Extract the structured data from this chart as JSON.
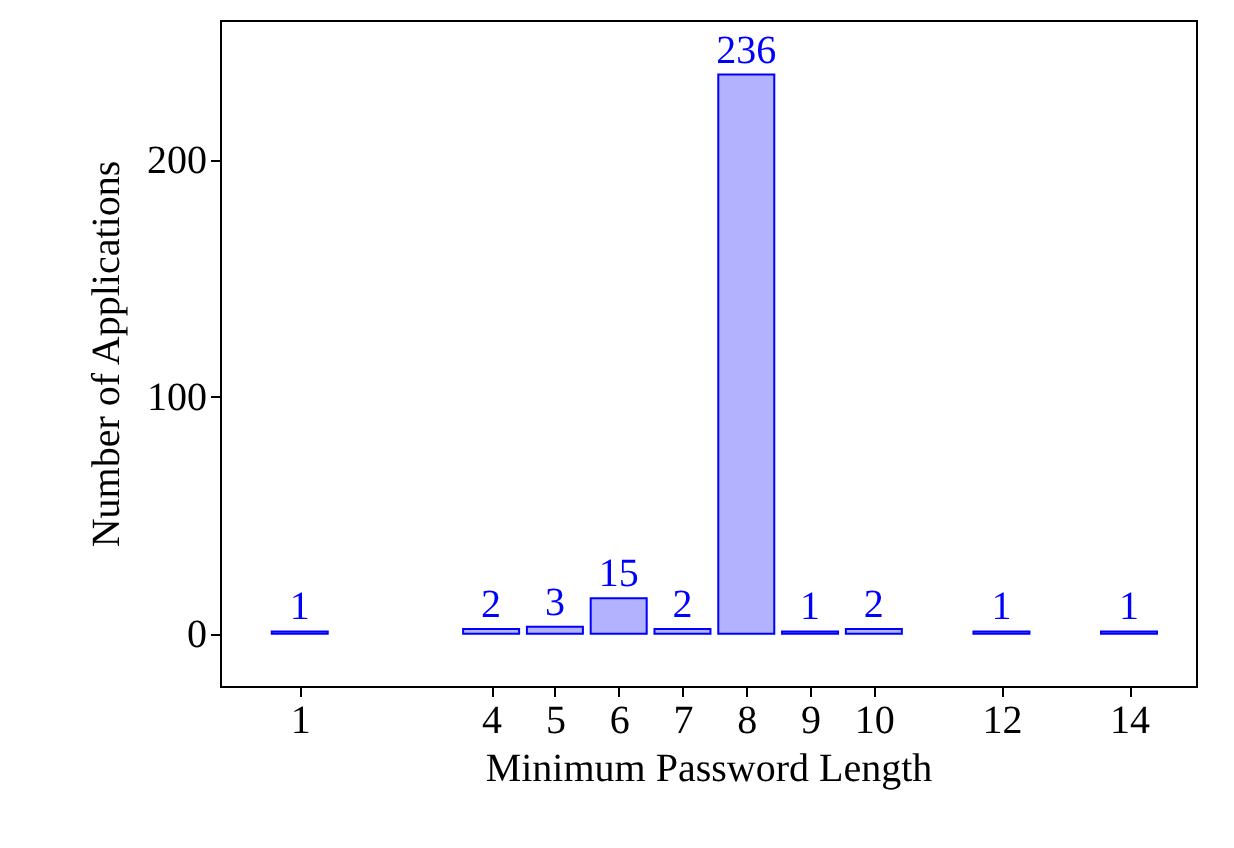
{
  "chart_data": {
    "type": "bar",
    "xlabel": "Minimum Password Length",
    "ylabel": "Number of Applications",
    "x": [
      1,
      4,
      5,
      6,
      7,
      8,
      9,
      10,
      12,
      14
    ],
    "series": [
      {
        "color": "#0000ff",
        "values": [
          1,
          2,
          3,
          15,
          2,
          236,
          1,
          2,
          1,
          1
        ]
      }
    ],
    "xlim": [
      -0.25,
      15.05
    ],
    "xticks": [
      1,
      4,
      5,
      6,
      7,
      8,
      9,
      10,
      12,
      14
    ],
    "ylim": [
      -22,
      259
    ],
    "yticks": [
      0,
      100,
      200
    ],
    "data_labels": true,
    "grid": false
  }
}
